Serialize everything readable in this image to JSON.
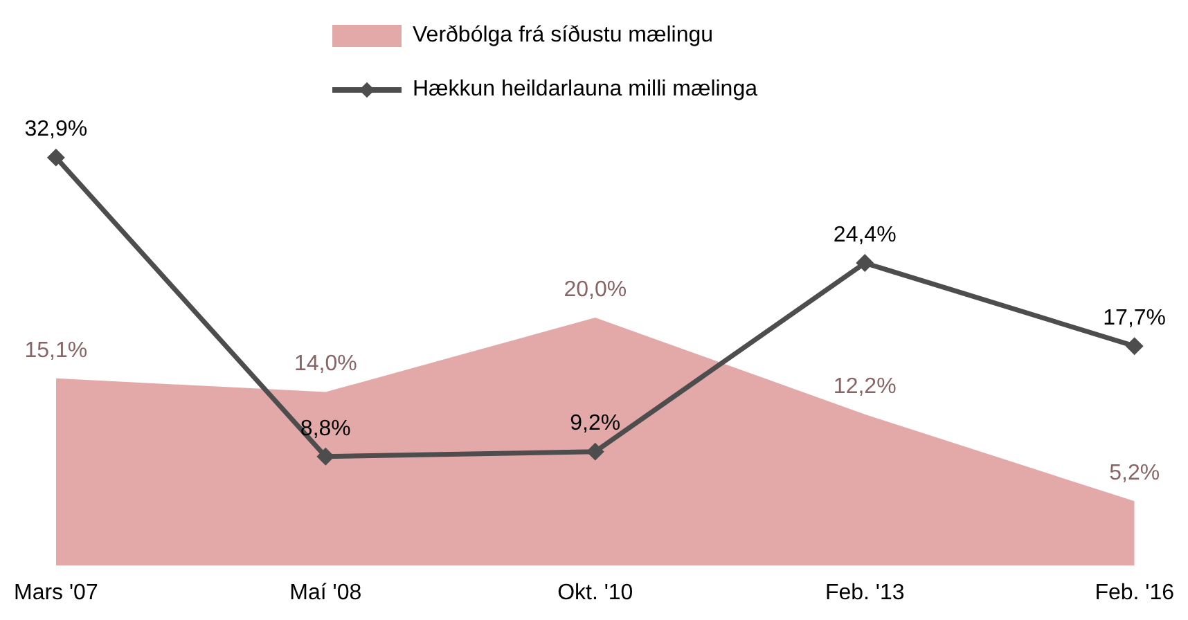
{
  "chart_data": {
    "type": "line",
    "categories": [
      "Mars '07",
      "Maí '08",
      "Okt. '10",
      "Feb. '13",
      "Feb. '16"
    ],
    "series": [
      {
        "name": "Verðbólga frá síðustu mælingu",
        "type": "area",
        "color": "#e3a9a8",
        "values": [
          15.1,
          14.0,
          20.0,
          12.2,
          5.2
        ],
        "value_labels": [
          "15,1%",
          "14,0%",
          "20,0%",
          "12,2%",
          "5,2%"
        ]
      },
      {
        "name": "Hækkun heildarlauna milli mælinga",
        "marker": "diamond",
        "color": "#4d4d4d",
        "values": [
          32.9,
          8.8,
          9.2,
          24.4,
          17.7
        ],
        "value_labels": [
          "32,9%",
          "8,8%",
          "9,2%",
          "24,4%",
          "17,7%"
        ]
      }
    ],
    "legend": "top",
    "grid": false,
    "tick_labels": "x"
  }
}
